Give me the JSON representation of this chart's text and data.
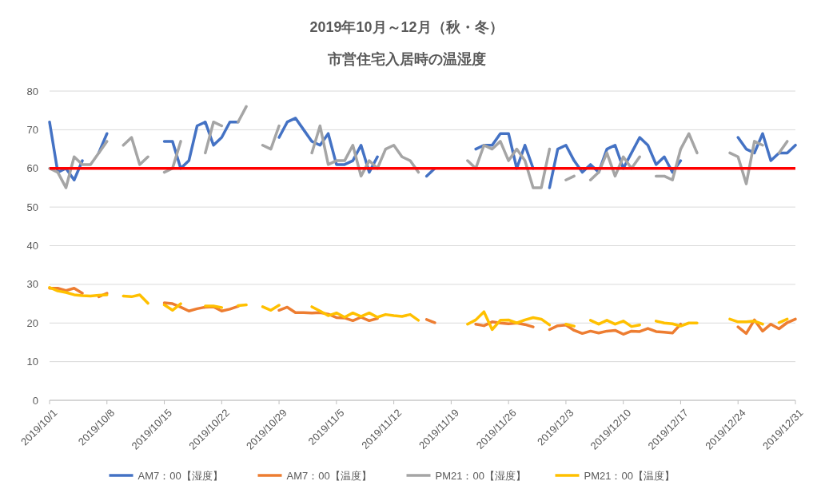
{
  "chart_data": {
    "type": "line",
    "title": "2019年10月～12月（秋・冬）",
    "subtitle": "市営住宅入居時の温湿度",
    "x": [
      "2019-10-01",
      "2019-10-02",
      "2019-10-03",
      "2019-10-04",
      "2019-10-05",
      "2019-10-06",
      "2019-10-07",
      "2019-10-08",
      "2019-10-09",
      "2019-10-10",
      "2019-10-11",
      "2019-10-12",
      "2019-10-13",
      "2019-10-14",
      "2019-10-15",
      "2019-10-16",
      "2019-10-17",
      "2019-10-18",
      "2019-10-19",
      "2019-10-20",
      "2019-10-21",
      "2019-10-22",
      "2019-10-23",
      "2019-10-24",
      "2019-10-25",
      "2019-10-26",
      "2019-10-27",
      "2019-10-28",
      "2019-10-29",
      "2019-10-30",
      "2019-10-31",
      "2019-11-01",
      "2019-11-02",
      "2019-11-03",
      "2019-11-04",
      "2019-11-05",
      "2019-11-06",
      "2019-11-07",
      "2019-11-08",
      "2019-11-09",
      "2019-11-10",
      "2019-11-11",
      "2019-11-12",
      "2019-11-13",
      "2019-11-14",
      "2019-11-15",
      "2019-11-16",
      "2019-11-17",
      "2019-11-18",
      "2019-11-19",
      "2019-11-20",
      "2019-11-21",
      "2019-11-22",
      "2019-11-23",
      "2019-11-24",
      "2019-11-25",
      "2019-11-26",
      "2019-11-27",
      "2019-11-28",
      "2019-11-29",
      "2019-11-30",
      "2019-12-01",
      "2019-12-02",
      "2019-12-03",
      "2019-12-04",
      "2019-12-05",
      "2019-12-06",
      "2019-12-07",
      "2019-12-08",
      "2019-12-09",
      "2019-12-10",
      "2019-12-11",
      "2019-12-12",
      "2019-12-13",
      "2019-12-14",
      "2019-12-15",
      "2019-12-16",
      "2019-12-17",
      "2019-12-18",
      "2019-12-19",
      "2019-12-20",
      "2019-12-21",
      "2019-12-22",
      "2019-12-23",
      "2019-12-24",
      "2019-12-25",
      "2019-12-26",
      "2019-12-27",
      "2019-12-28",
      "2019-12-29",
      "2019-12-30",
      "2019-12-31"
    ],
    "series": [
      {
        "name": "AM7：00【湿度】",
        "color": "#4472c4",
        "values": [
          72,
          59,
          60,
          57,
          62,
          null,
          64,
          69,
          null,
          null,
          null,
          null,
          null,
          null,
          67,
          67,
          60,
          62,
          71,
          72,
          66,
          68,
          72,
          72,
          null,
          null,
          null,
          null,
          68,
          72,
          73,
          70,
          67,
          66,
          69,
          61,
          61,
          62,
          66,
          59,
          63,
          null,
          null,
          null,
          null,
          null,
          58,
          60,
          null,
          null,
          null,
          null,
          65,
          66,
          66,
          69,
          69,
          60,
          66,
          60,
          null,
          55,
          65,
          66,
          62,
          59,
          61,
          59,
          65,
          66,
          60,
          64,
          68,
          66,
          61,
          63,
          59,
          62,
          null,
          null,
          null,
          null,
          null,
          null,
          68,
          65,
          64,
          69,
          62,
          64,
          64,
          66
        ]
      },
      {
        "name": "AM7：00【温度】",
        "color": "#ed7d31",
        "values": [
          29,
          29,
          28.4,
          29,
          27.7,
          null,
          26.8,
          27.7,
          null,
          null,
          null,
          null,
          null,
          null,
          25.2,
          25,
          24.1,
          23.1,
          23.7,
          24.1,
          24.2,
          23.1,
          23.6,
          24.3,
          null,
          null,
          null,
          null,
          23.3,
          24.1,
          22.7,
          22.7,
          22.6,
          22.7,
          22.3,
          21.4,
          21.3,
          20.6,
          21.5,
          20.6,
          21.2,
          null,
          null,
          null,
          null,
          null,
          20.9,
          20.1,
          null,
          null,
          null,
          null,
          19.7,
          19.3,
          20.3,
          20,
          19.8,
          20,
          19.6,
          19,
          null,
          18.3,
          19.3,
          19.5,
          18.1,
          17.3,
          17.9,
          17.4,
          17.9,
          18.1,
          17.1,
          17.9,
          17.8,
          18.6,
          17.8,
          17.6,
          17.4,
          19.7,
          null,
          null,
          null,
          null,
          null,
          null,
          19,
          17.3,
          20.8,
          17.9,
          19.7,
          18.5,
          20.1,
          21
        ]
      },
      {
        "name": "PM21：00【湿度】",
        "color": "#a5a5a5",
        "values": [
          60,
          59,
          55,
          63,
          61,
          61,
          64,
          67,
          null,
          66,
          68,
          61,
          63,
          null,
          59,
          60,
          67,
          null,
          null,
          64,
          72,
          71,
          null,
          72,
          76,
          null,
          66,
          65,
          71,
          null,
          null,
          null,
          64,
          71,
          61,
          62,
          62,
          66,
          58,
          62,
          60,
          65,
          66,
          63,
          62,
          59,
          null,
          null,
          null,
          null,
          null,
          62,
          60,
          66,
          65,
          67,
          62,
          65,
          62,
          55,
          55,
          65,
          null,
          57,
          58,
          null,
          57,
          59,
          64,
          58,
          63,
          60,
          63,
          null,
          58,
          58,
          57,
          65,
          69,
          64,
          null,
          null,
          null,
          64,
          63,
          56,
          67,
          66,
          null,
          64,
          67,
          null
        ]
      },
      {
        "name": "PM21：00【温度】",
        "color": "#ffc000",
        "values": [
          29.2,
          28.3,
          27.9,
          27.3,
          27.1,
          27,
          27.2,
          27.3,
          null,
          27,
          26.8,
          27.3,
          25.1,
          null,
          24.7,
          23.3,
          25,
          null,
          null,
          24.4,
          24.4,
          24,
          null,
          24.5,
          24.7,
          null,
          24.2,
          23.3,
          24.6,
          null,
          null,
          null,
          24.2,
          23.1,
          21.9,
          22.6,
          21.5,
          22.6,
          21.7,
          22.6,
          21.5,
          22.2,
          21.9,
          21.7,
          22.2,
          20.7,
          null,
          null,
          null,
          null,
          null,
          19.7,
          20.8,
          22.9,
          18.3,
          20.7,
          20.8,
          20,
          20.8,
          21.4,
          21,
          19.5,
          null,
          19.7,
          19.2,
          null,
          20.7,
          19.7,
          20.7,
          19.7,
          20.5,
          19.1,
          19.5,
          null,
          20.5,
          20,
          19.8,
          19.2,
          20,
          20,
          null,
          null,
          null,
          21,
          20.3,
          20.3,
          20.5,
          19.7,
          null,
          20.1,
          21,
          null
        ]
      }
    ],
    "xlim": [
      "2019-10-01",
      "2019-12-31"
    ],
    "xticks": [
      {
        "value": "2019-10-01",
        "label": "2019/10/1"
      },
      {
        "value": "2019-10-08",
        "label": "2019/10/8"
      },
      {
        "value": "2019-10-15",
        "label": "2019/10/15"
      },
      {
        "value": "2019-10-22",
        "label": "2019/10/22"
      },
      {
        "value": "2019-10-29",
        "label": "2019/10/29"
      },
      {
        "value": "2019-11-05",
        "label": "2019/11/5"
      },
      {
        "value": "2019-11-12",
        "label": "2019/11/12"
      },
      {
        "value": "2019-11-19",
        "label": "2019/11/19"
      },
      {
        "value": "2019-11-26",
        "label": "2019/11/26"
      },
      {
        "value": "2019-12-03",
        "label": "2019/12/3"
      },
      {
        "value": "2019-12-10",
        "label": "2019/12/10"
      },
      {
        "value": "2019-12-17",
        "label": "2019/12/17"
      },
      {
        "value": "2019-12-24",
        "label": "2019/12/24"
      },
      {
        "value": "2019-12-31",
        "label": "2019/12/31"
      }
    ],
    "ylim": [
      0,
      80
    ],
    "yticks": [
      0,
      10,
      20,
      30,
      40,
      50,
      60,
      70,
      80
    ],
    "ref_lines": [
      {
        "axis": "y",
        "value": 60,
        "color": "#ff0000"
      }
    ],
    "grid": "y",
    "legend": "bottom",
    "marker": "none",
    "line_style": "solid"
  }
}
